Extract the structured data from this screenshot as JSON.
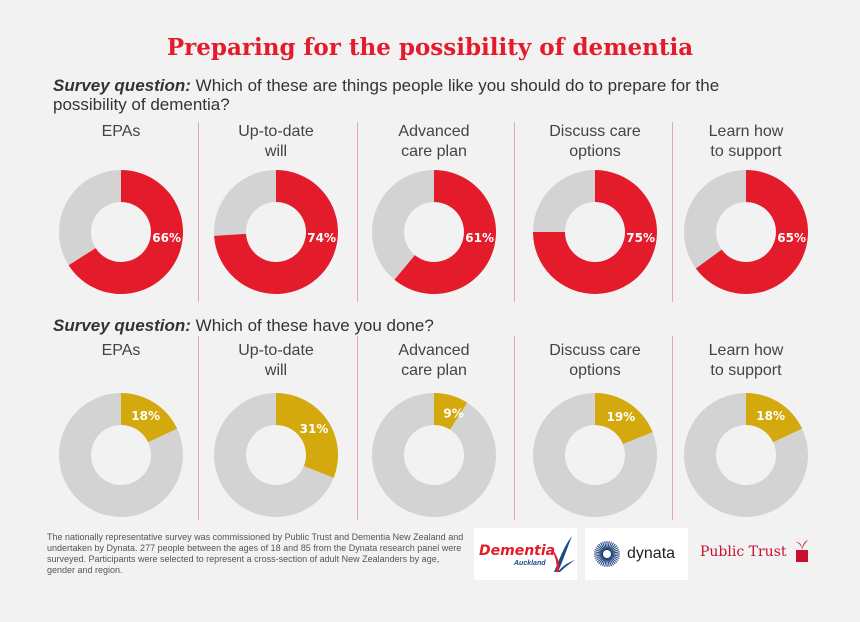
{
  "title": "Preparing for the possibility of dementia",
  "questions": [
    {
      "label": "Survey question:",
      "text": " Which of these are things people like you should do to prepare for the possibility of dementia?"
    },
    {
      "label": "Survey question:",
      "text": " Which of these have you done?"
    }
  ],
  "colors": {
    "red": "#e31b2a",
    "gold": "#d4a90d",
    "grey": "#d3d3d3",
    "divider": "#e9a7ab"
  },
  "chart_data": [
    {
      "type": "pie",
      "title": "Which of these are things people like you should do to prepare for the possibility of dementia?",
      "categories": [
        "EPAs",
        "Up-to-date will",
        "Advanced care plan",
        "Discuss care options",
        "Learn how to support"
      ],
      "category_labels": [
        [
          "EPAs"
        ],
        [
          "Up-to-date",
          "will"
        ],
        [
          "Advanced",
          "care plan"
        ],
        [
          "Discuss care",
          "options"
        ],
        [
          "Learn how",
          "to support"
        ]
      ],
      "values": [
        66,
        74,
        61,
        75,
        65
      ],
      "value_labels": [
        "66%",
        "74%",
        "61%",
        "75%",
        "65%"
      ],
      "unit": "%"
    },
    {
      "type": "pie",
      "title": "Which of these have you done?",
      "categories": [
        "EPAs",
        "Up-to-date will",
        "Advanced care plan",
        "Discuss care options",
        "Learn how to support"
      ],
      "category_labels": [
        [
          "EPAs"
        ],
        [
          "Up-to-date",
          "will"
        ],
        [
          "Advanced",
          "care plan"
        ],
        [
          "Discuss care",
          "options"
        ],
        [
          "Learn how",
          "to support"
        ]
      ],
      "values": [
        18,
        31,
        9,
        19,
        18
      ],
      "value_labels": [
        "18%",
        "31%",
        "9%",
        "19%",
        "18%"
      ],
      "unit": "%"
    }
  ],
  "footnote": "The nationally representative survey was commissioned by Public Trust and Dementia New Zealand and undertaken by Dynata. 277 people between the ages of 18 and 85 from the Dynata research panel were surveyed. Participants were selected to represent a cross-section of adult New Zealanders by age, gender and region.",
  "logos": {
    "dementia": {
      "name": "Dementia",
      "sub": "Auckland"
    },
    "dynata": {
      "name": "dynata"
    },
    "public_trust": {
      "name": "Public Trust"
    }
  }
}
